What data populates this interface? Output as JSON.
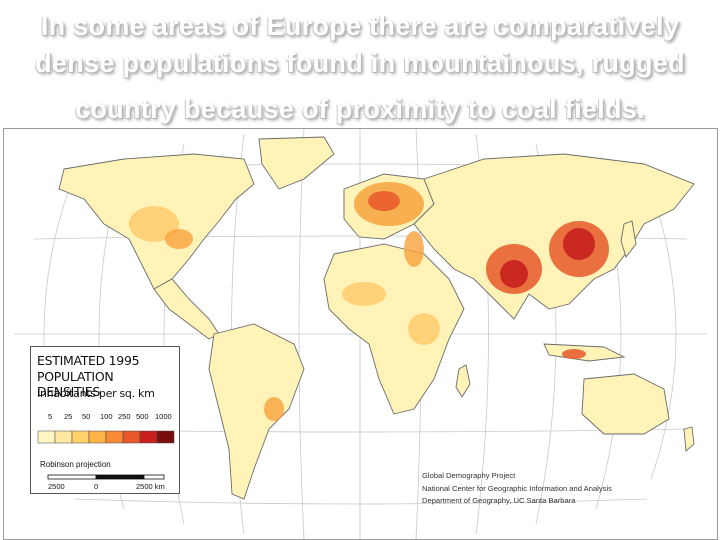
{
  "slide": {
    "title_lines": [
      "In some areas of Europe there are comparatively",
      "dense populations found in mountainous, rugged",
      "country because of proximity to coal fields."
    ]
  },
  "map": {
    "legend": {
      "title_line1": "ESTIMATED 1995",
      "title_line2": "POPULATION DENSITIES",
      "subtitle": "Inhabitants per sq. km",
      "ticks": [
        "5",
        "25",
        "50",
        "100",
        "250",
        "500",
        "1000"
      ],
      "colors": [
        "#fff6c4",
        "#ffe9a0",
        "#ffd36a",
        "#ffb347",
        "#f98a37",
        "#e8582a",
        "#c8201e",
        "#7a0e0e"
      ],
      "projection_label": "Robinson projection",
      "scale_labels": [
        "2500",
        "0",
        "2500 km"
      ]
    },
    "credits": [
      "Global Demography Project",
      "National Center for Geographic Information and Analysis",
      "Department of Geography, UC Santa Barbara"
    ],
    "colors": {
      "land_base": "#fff3b8",
      "graticule": "#c9c9c9",
      "coast": "#6b6b6b",
      "dense": "#d7331c",
      "medium": "#f7a23c"
    }
  }
}
